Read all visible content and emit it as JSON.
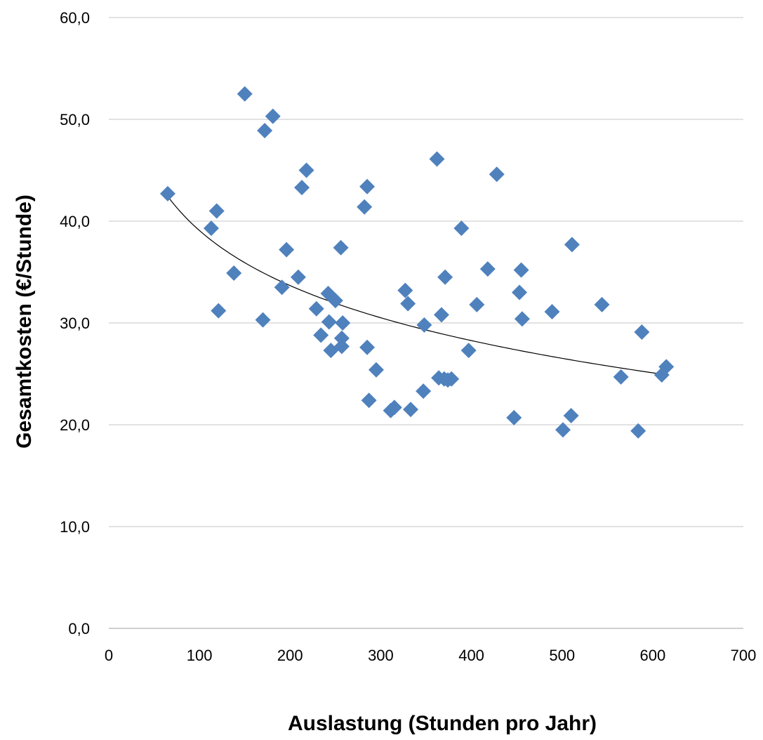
{
  "chart_data": {
    "type": "scatter",
    "xlabel": "Auslastung (Stunden pro Jahr)",
    "ylabel": "Gesamtkosten (€/Stunde)",
    "xlim": [
      0,
      700
    ],
    "ylim": [
      0,
      60
    ],
    "x_ticks": [
      0,
      100,
      200,
      300,
      400,
      500,
      600,
      700
    ],
    "x_tick_labels": [
      "0",
      "100",
      "200",
      "300",
      "400",
      "500",
      "600",
      "700"
    ],
    "y_ticks": [
      0,
      10,
      20,
      30,
      40,
      50,
      60
    ],
    "y_tick_labels": [
      "0,0",
      "10,0",
      "20,0",
      "30,0",
      "40,0",
      "50,0",
      "60,0"
    ],
    "grid": "horizontal",
    "marker": "diamond",
    "series": [
      {
        "color": "#4f81bd",
        "points": [
          [
            65,
            42.7
          ],
          [
            113,
            39.3
          ],
          [
            119,
            41.0
          ],
          [
            121,
            31.2
          ],
          [
            138,
            34.9
          ],
          [
            150,
            52.5
          ],
          [
            170,
            30.3
          ],
          [
            172,
            48.9
          ],
          [
            181,
            50.3
          ],
          [
            191,
            33.5
          ],
          [
            196,
            37.2
          ],
          [
            209,
            34.5
          ],
          [
            213,
            43.3
          ],
          [
            218,
            45.0
          ],
          [
            229,
            31.4
          ],
          [
            234,
            28.8
          ],
          [
            242,
            32.9
          ],
          [
            243,
            30.1
          ],
          [
            245,
            27.3
          ],
          [
            250,
            32.2
          ],
          [
            256,
            37.4
          ],
          [
            257,
            27.7
          ],
          [
            257,
            28.5
          ],
          [
            258,
            30.0
          ],
          [
            282,
            41.4
          ],
          [
            285,
            43.4
          ],
          [
            285,
            27.6
          ],
          [
            287,
            22.4
          ],
          [
            295,
            25.4
          ],
          [
            311,
            21.4
          ],
          [
            315,
            21.7
          ],
          [
            327,
            33.2
          ],
          [
            330,
            31.9
          ],
          [
            333,
            21.5
          ],
          [
            347,
            23.3
          ],
          [
            348,
            29.8
          ],
          [
            362,
            46.1
          ],
          [
            364,
            24.6
          ],
          [
            367,
            30.8
          ],
          [
            370,
            24.5
          ],
          [
            371,
            34.5
          ],
          [
            374,
            24.4
          ],
          [
            378,
            24.5
          ],
          [
            389,
            39.3
          ],
          [
            397,
            27.3
          ],
          [
            406,
            31.8
          ],
          [
            418,
            35.3
          ],
          [
            428,
            44.6
          ],
          [
            447,
            20.7
          ],
          [
            453,
            33.0
          ],
          [
            455,
            35.2
          ],
          [
            456,
            30.4
          ],
          [
            489,
            31.1
          ],
          [
            501,
            19.5
          ],
          [
            510,
            20.9
          ],
          [
            511,
            37.7
          ],
          [
            544,
            31.8
          ],
          [
            565,
            24.7
          ],
          [
            584,
            19.4
          ],
          [
            588,
            29.1
          ],
          [
            610,
            24.9
          ],
          [
            615,
            25.7
          ]
        ]
      }
    ],
    "trendline": {
      "type": "logarithmic",
      "color": "#000000",
      "x_range": [
        65,
        615
      ],
      "a": 75.0,
      "b": -7.8
    }
  }
}
